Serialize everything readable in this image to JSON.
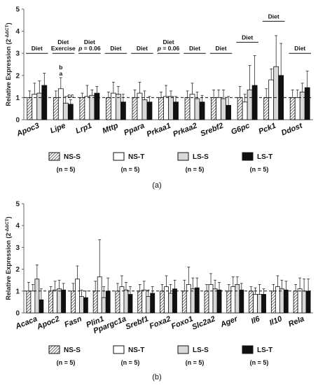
{
  "legend": [
    {
      "key": "NS-S",
      "label": "NS-S",
      "n": "(n = 5)"
    },
    {
      "key": "NS-T",
      "label": "NS-T",
      "n": "(n = 5)"
    },
    {
      "key": "LS-S",
      "label": "LS-S",
      "n": "(n = 5)"
    },
    {
      "key": "LS-T",
      "label": "LS-T",
      "n": "(n = 5)"
    }
  ],
  "colors": {
    "NS-S": "hatch",
    "NS-T": "#ffffff",
    "LS-S": "#d9d9d9",
    "LS-T": "#111111"
  },
  "chart_data": [
    {
      "type": "bar",
      "panel_label": "(a)",
      "ylabel": "Relative Expression (2^-ΔΔCT)",
      "ylim": [
        0,
        5
      ],
      "yticks": [
        0,
        1,
        2,
        3,
        4,
        5
      ],
      "reference_line": 1,
      "categories": [
        "Apoc3",
        "Lipe",
        "Lrp1",
        "Mttp",
        "Ppara",
        "Prkaa1",
        "Prkaa2",
        "Srebf2",
        "G6pc",
        "Pck1",
        "Ddost"
      ],
      "series": [
        {
          "name": "NS-S",
          "values": [
            1.0,
            1.0,
            1.0,
            1.0,
            1.0,
            1.0,
            1.0,
            1.0,
            1.0,
            1.0,
            1.0
          ],
          "errors": [
            0.3,
            0.3,
            0.2,
            0.25,
            0.35,
            0.25,
            0.3,
            0.35,
            0.5,
            0.4,
            0.35
          ]
        },
        {
          "name": "NS-T",
          "values": [
            1.15,
            1.4,
            1.05,
            1.2,
            1.2,
            1.05,
            1.15,
            1.0,
            0.8,
            1.8,
            1.0
          ]
        },
        {
          "name": "LS-S",
          "values": [
            1.2,
            0.75,
            1.1,
            1.15,
            0.9,
            1.05,
            0.95,
            0.95,
            1.35,
            2.4,
            1.25
          ],
          "errors": [
            0.55,
            0.3,
            0.25,
            0.35,
            0.4,
            0.25,
            0.3,
            0.4,
            1.1,
            1.4,
            0.4
          ]
        },
        {
          "name": "LS-T",
          "values": [
            1.55,
            0.7,
            1.2,
            0.8,
            0.8,
            0.8,
            0.8,
            0.65,
            1.55,
            2.0,
            1.45
          ],
          "errors": [
            0.55,
            0.2,
            0.3,
            0.35,
            0.25,
            0.25,
            0.3,
            0.4,
            1.35,
            1.45,
            0.75
          ]
        }
      ],
      "annotations": [
        {
          "category": "Apoc3",
          "lines": [
            "Diet"
          ],
          "level": 3.0
        },
        {
          "category": "Lipe",
          "lines": [
            "Diet",
            "Exercise"
          ],
          "level": 3.0
        },
        {
          "category": "Lrp1",
          "lines": [
            "Diet",
            "p = 0.06"
          ],
          "level": 3.0
        },
        {
          "category": "Mttp",
          "lines": [
            "Diet"
          ],
          "level": 3.0
        },
        {
          "category": "Ppara",
          "lines": [
            "Diet"
          ],
          "level": 3.0
        },
        {
          "category": "Prkaa1",
          "lines": [
            "Diet",
            "p = 0.06"
          ],
          "level": 3.0
        },
        {
          "category": "Prkaa2",
          "lines": [
            "Diet"
          ],
          "level": 3.0
        },
        {
          "category": "Srebf2",
          "lines": [
            "Diet"
          ],
          "level": 3.0
        },
        {
          "category": "G6pc",
          "lines": [
            "Diet"
          ],
          "level": 3.5
        },
        {
          "category": "Pck1",
          "lines": [
            "Diet"
          ],
          "level": 4.45
        },
        {
          "category": "Ddost",
          "lines": [
            "Diet"
          ],
          "level": 3.0
        }
      ],
      "letters": [
        {
          "category": "Lipe",
          "series": "NS-T",
          "text": "a"
        },
        {
          "category": "Lipe",
          "series": "NS-T",
          "text": "b",
          "above": true
        },
        {
          "category": "Lipe",
          "series": "LS-T",
          "text": "cc"
        }
      ]
    },
    {
      "type": "bar",
      "panel_label": "(b)",
      "ylabel": "Relative Expression (2^-ΔΔCT)",
      "ylim": [
        0,
        5
      ],
      "yticks": [
        0,
        1,
        2,
        3,
        4,
        5
      ],
      "reference_line": 1,
      "categories": [
        "Acaca",
        "Apoc2",
        "Fasn",
        "Plin1",
        "Ppargc1a",
        "Srebf1",
        "Foxa2",
        "Foxo1",
        "Slc2a2",
        "Ager",
        "Il6",
        "Il10",
        "Rela"
      ],
      "series": [
        {
          "name": "NS-S",
          "values": [
            1.0,
            1.0,
            1.0,
            1.0,
            1.0,
            1.0,
            1.0,
            1.0,
            1.0,
            1.0,
            1.0,
            1.0,
            1.0
          ],
          "errors": [
            0.4,
            0.2,
            0.35,
            0.45,
            0.35,
            0.3,
            0.3,
            0.5,
            0.3,
            0.3,
            0.2,
            0.3,
            0.3
          ]
        },
        {
          "name": "NS-T",
          "values": [
            1.0,
            1.05,
            1.55,
            1.65,
            1.2,
            1.05,
            1.2,
            1.3,
            1.3,
            1.2,
            0.85,
            1.2,
            1.1
          ],
          "errors": [
            0.3,
            0.4,
            0.6,
            1.7,
            0.5,
            0.4,
            0.5,
            0.8,
            0.5,
            0.45,
            0.3,
            0.5,
            0.5
          ]
        },
        {
          "name": "LS-S",
          "values": [
            1.55,
            1.1,
            0.75,
            0.7,
            1.05,
            0.75,
            0.9,
            1.1,
            1.1,
            1.3,
            0.85,
            1.1,
            1.0
          ],
          "errors": [
            0.65,
            0.4,
            0.3,
            0.5,
            0.35,
            0.3,
            0.4,
            0.5,
            0.4,
            0.35,
            0.45,
            0.4,
            0.55
          ]
        },
        {
          "name": "LS-T",
          "values": [
            0.6,
            1.05,
            0.7,
            1.0,
            0.85,
            0.9,
            1.1,
            1.15,
            1.05,
            1.05,
            0.85,
            1.05,
            1.0
          ],
          "errors": [
            0.5,
            0.3,
            0.3,
            0.6,
            0.35,
            0.3,
            0.4,
            0.45,
            0.35,
            0.3,
            0.25,
            0.4,
            0.55
          ]
        }
      ]
    }
  ]
}
